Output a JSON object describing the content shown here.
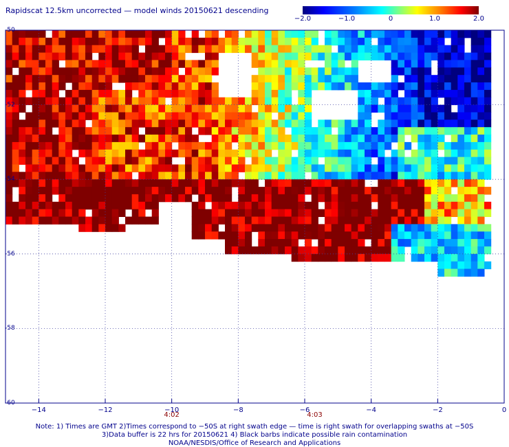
{
  "title": "Rapidscat 12.5km uncorrected — model winds 20150621 descending",
  "colorbar": {
    "min": -2.0,
    "max": 2.0,
    "labels": [
      "−2.0",
      "−1.0",
      "0",
      "1.0",
      "2.0"
    ],
    "label_values": [
      -2,
      -1,
      0,
      1,
      2
    ],
    "colors": [
      "#00007f",
      "#0000ff",
      "#0080ff",
      "#00ffff",
      "#80ff80",
      "#ffff00",
      "#ff8000",
      "#ff0000",
      "#7f0000"
    ]
  },
  "map": {
    "lon_range": [
      -15,
      0
    ],
    "lat_range": [
      -60,
      -50
    ],
    "y_ticks": [
      {
        "value": -50,
        "label": "-50"
      },
      {
        "value": -52,
        "label": "-52"
      },
      {
        "value": -54,
        "label": "-54"
      },
      {
        "value": -56,
        "label": "-56"
      },
      {
        "value": -58,
        "label": "-58"
      },
      {
        "value": -60,
        "label": "-60"
      }
    ],
    "x_ticks": [
      {
        "value": -14,
        "label": "−14"
      },
      {
        "value": -12,
        "label": "−12"
      },
      {
        "value": -10,
        "label": "−10"
      },
      {
        "value": -8,
        "label": "−8"
      },
      {
        "value": -6,
        "label": "−6"
      },
      {
        "value": -4,
        "label": "−4"
      },
      {
        "value": -2,
        "label": "−2"
      },
      {
        "value": 0,
        "label": "0"
      }
    ],
    "time_labels": [
      {
        "lon": -10,
        "label": "4:02"
      },
      {
        "lon": -5.7,
        "label": "4:03"
      }
    ],
    "grid": "dotted",
    "color_scale_colors": {
      "frame": "#00008b",
      "grid": "#4040a0",
      "missing": "#ffffff"
    }
  },
  "notes": [
    "Note: 1) Times are GMT 2)Times correspond to −50S at right swath edge — time is right swath for overlapping swaths at −50S",
    "3)Data buffer is 22 hrs for 20150621 4) Black barbs indicate possible rain contamination",
    "NOAA/NESDIS/Office of Research and Applications"
  ]
}
